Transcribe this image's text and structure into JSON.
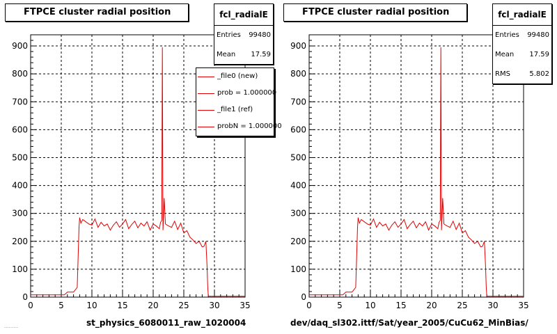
{
  "chart_data": [
    {
      "type": "line",
      "title": "FTPCE cluster radial position",
      "xlabel": "st_physics_6080011_raw_1020004",
      "ylabel": "",
      "xlim": [
        0,
        35
      ],
      "ylim": [
        0,
        940
      ],
      "xticks": [
        "0",
        "5",
        "10",
        "15",
        "20",
        "25",
        "30",
        "35"
      ],
      "yticks": [
        "0",
        "100",
        "200",
        "300",
        "400",
        "500",
        "600",
        "700",
        "800",
        "900"
      ],
      "grid": true,
      "color": "#e00000",
      "stats": {
        "name": "fcl_radialE",
        "entries_label": "Entries",
        "entries": "99480",
        "mean_label": "Mean",
        "mean": "17.59"
      },
      "legend": [
        "_file0 (new)",
        "prob = 1.000000",
        "_file1 (ref)",
        "probN = 1.000000"
      ],
      "x": [
        0,
        1,
        2,
        3,
        4,
        5,
        5.5,
        6,
        7,
        7.6,
        7.9,
        8.0,
        8.2,
        8.5,
        9,
        9.5,
        10,
        10.5,
        11,
        11.5,
        12,
        12.5,
        13,
        13.5,
        14,
        14.5,
        15,
        15.5,
        16,
        16.5,
        17,
        17.5,
        18,
        18.5,
        19,
        19.5,
        20,
        20.5,
        21,
        21.2,
        21.4,
        21.5,
        21.6,
        21.8,
        22,
        22.5,
        23,
        23.5,
        24,
        24.5,
        25,
        25.5,
        26,
        26.5,
        27,
        27.5,
        28,
        28.3,
        28.6,
        28.8,
        28.9,
        29.0,
        29.2,
        30,
        35
      ],
      "y": [
        8,
        8,
        8,
        8,
        8,
        8,
        8,
        18,
        18,
        35,
        250,
        285,
        265,
        278,
        270,
        262,
        258,
        280,
        250,
        268,
        255,
        262,
        240,
        258,
        270,
        250,
        262,
        278,
        245,
        260,
        272,
        248,
        265,
        255,
        270,
        240,
        262,
        255,
        245,
        268,
        275,
        895,
        240,
        355,
        262,
        255,
        250,
        272,
        242,
        265,
        230,
        238,
        215,
        205,
        192,
        200,
        180,
        182,
        200,
        110,
        40,
        3,
        3,
        3,
        3
      ]
    },
    {
      "type": "line",
      "title": "FTPCE cluster radial position",
      "xlabel": "dev/daq_sl302.ittf/Sat/year_2005/CuCu62_MinBias/",
      "ylabel": "",
      "xlim": [
        0,
        35
      ],
      "ylim": [
        0,
        940
      ],
      "xticks": [
        "0",
        "5",
        "10",
        "15",
        "20",
        "25",
        "30",
        "35"
      ],
      "yticks": [
        "0",
        "100",
        "200",
        "300",
        "400",
        "500",
        "600",
        "700",
        "800",
        "900"
      ],
      "grid": true,
      "color": "#e00000",
      "stats": {
        "name": "fcl_radialE",
        "entries_label": "Entries",
        "entries": "99480",
        "mean_label": "Mean",
        "mean": "17.59",
        "rms_label": "RMS",
        "rms": "5.802"
      },
      "x": [
        0,
        1,
        2,
        3,
        4,
        5,
        5.5,
        6,
        7,
        7.6,
        7.9,
        8.0,
        8.2,
        8.5,
        9,
        9.5,
        10,
        10.5,
        11,
        11.5,
        12,
        12.5,
        13,
        13.5,
        14,
        14.5,
        15,
        15.5,
        16,
        16.5,
        17,
        17.5,
        18,
        18.5,
        19,
        19.5,
        20,
        20.5,
        21,
        21.2,
        21.4,
        21.5,
        21.6,
        21.8,
        22,
        22.5,
        23,
        23.5,
        24,
        24.5,
        25,
        25.5,
        26,
        26.5,
        27,
        27.5,
        28,
        28.3,
        28.6,
        28.8,
        28.9,
        29.0,
        29.2,
        30,
        35
      ],
      "y": [
        8,
        8,
        8,
        8,
        8,
        8,
        8,
        18,
        18,
        35,
        250,
        285,
        265,
        278,
        270,
        262,
        258,
        280,
        250,
        268,
        255,
        262,
        240,
        258,
        270,
        250,
        262,
        278,
        245,
        260,
        272,
        248,
        265,
        255,
        270,
        240,
        262,
        255,
        245,
        268,
        275,
        895,
        240,
        355,
        262,
        255,
        250,
        272,
        242,
        265,
        230,
        238,
        215,
        205,
        192,
        200,
        180,
        182,
        200,
        110,
        40,
        3,
        3,
        3,
        3
      ]
    }
  ],
  "footer_text": "........."
}
